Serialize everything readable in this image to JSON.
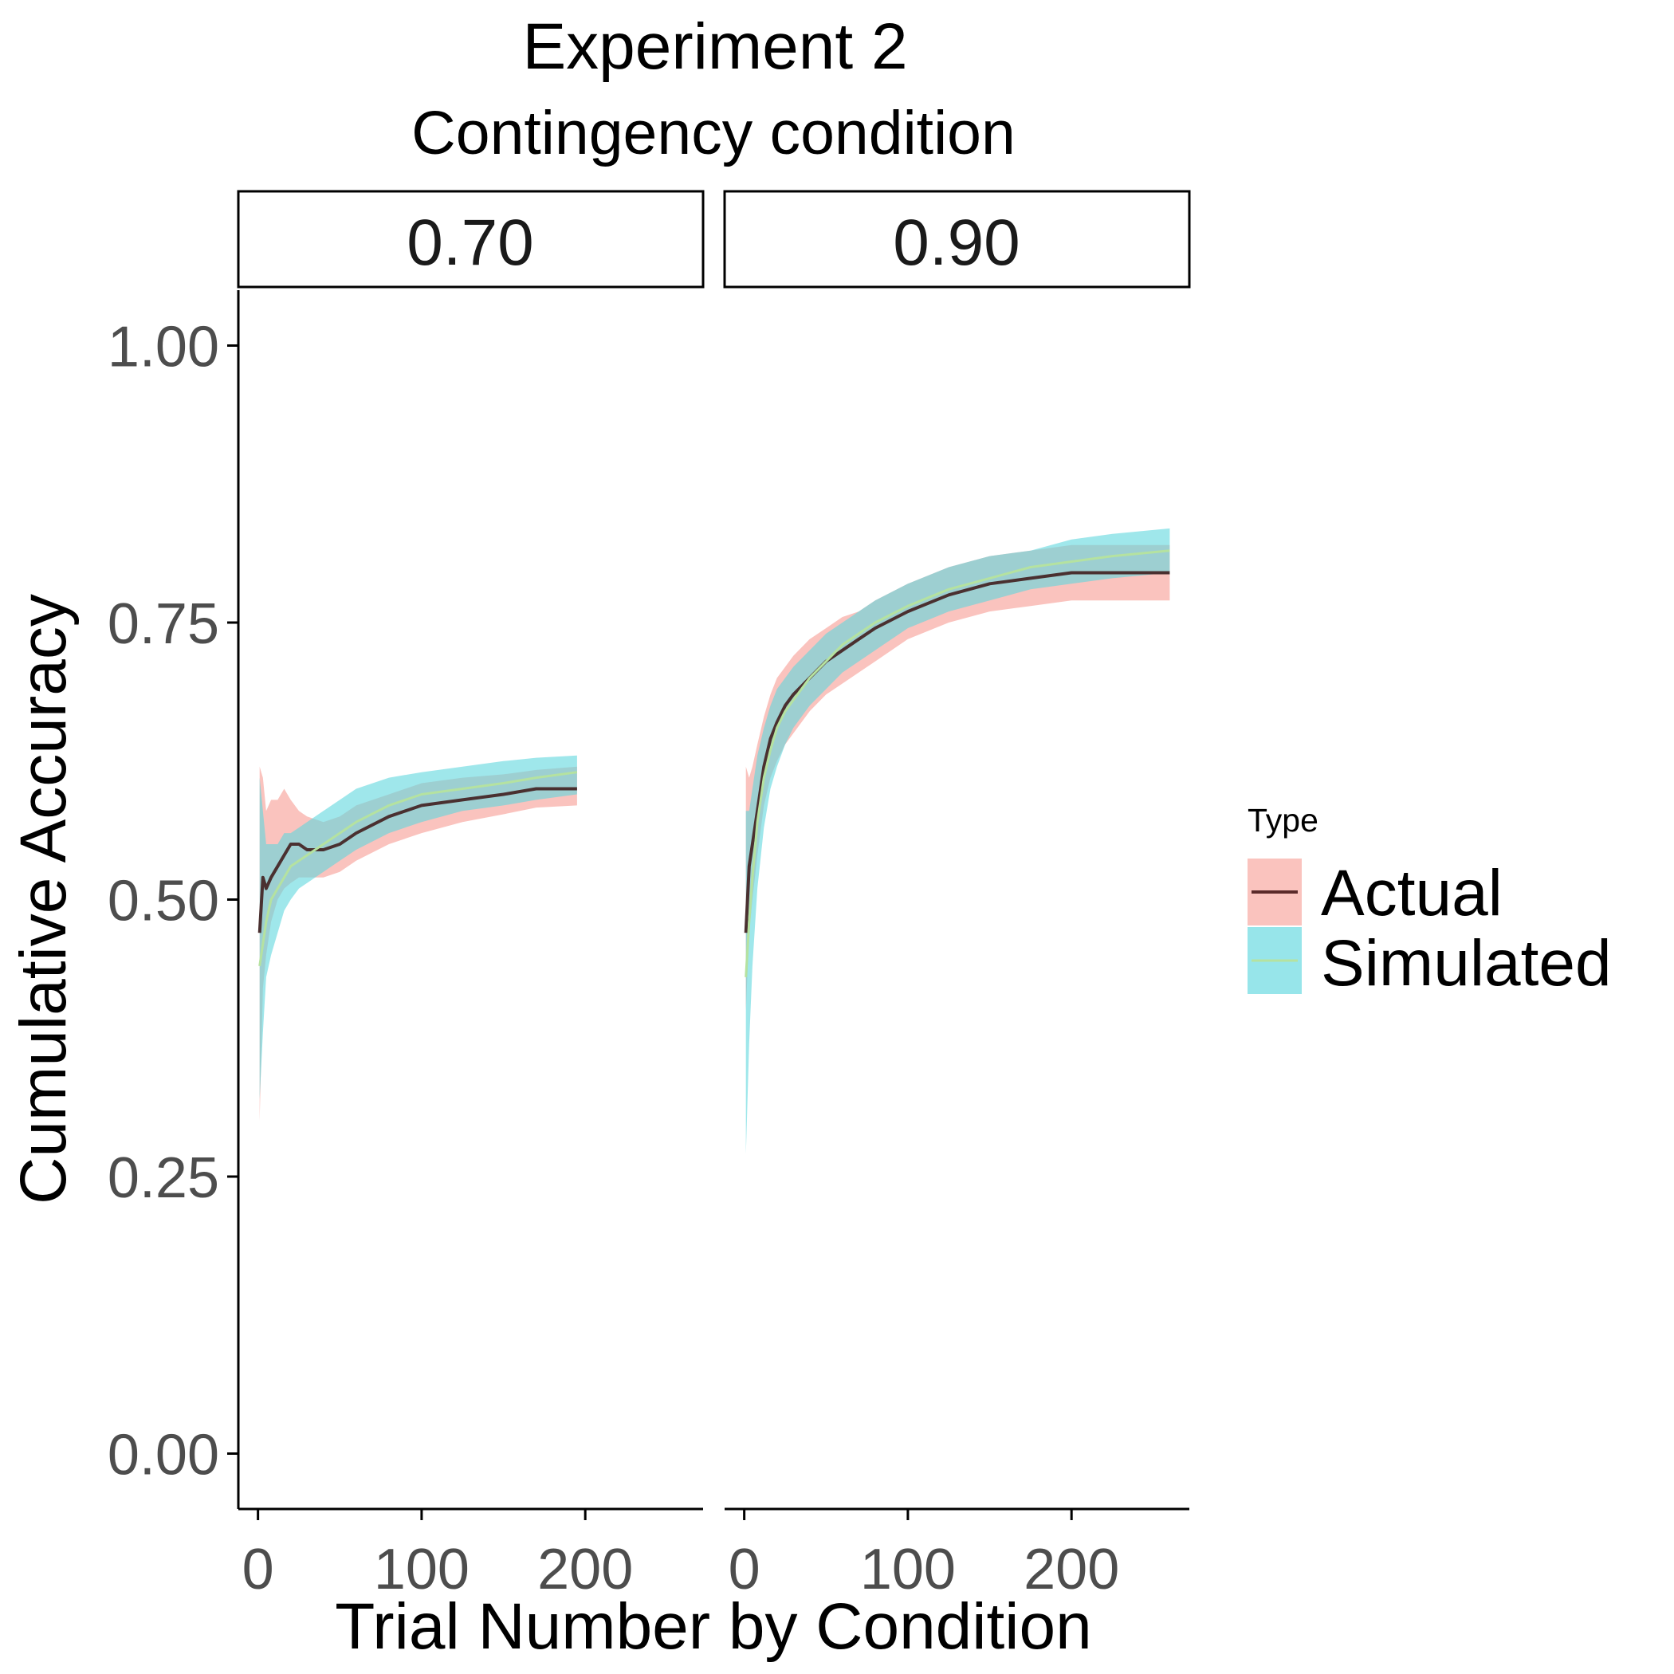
{
  "chart_data": {
    "type": "line",
    "title": "Experiment 2",
    "subtitle": "Contingency condition",
    "xlabel": "Trial Number by Condition",
    "ylabel": "Cumulative Accuracy",
    "xlim": [
      -12,
      272
    ],
    "ylim": [
      -0.05,
      1.05
    ],
    "x_ticks": [
      0,
      100,
      200
    ],
    "x_tick_labels": [
      "0",
      "100",
      "200"
    ],
    "y_ticks": [
      0,
      0.25,
      0.5,
      0.75,
      1.0
    ],
    "y_tick_labels": [
      "0.00",
      "0.25",
      "0.50",
      "0.75",
      "1.00"
    ],
    "grid": false,
    "legend": {
      "title": "Type",
      "position": "right",
      "entries": [
        {
          "label": "Actual",
          "fill": "#f8a9a3",
          "line": "#5a2a2a"
        },
        {
          "label": "Simulated",
          "fill": "#5fd7de",
          "line": "#b5e2a0"
        }
      ]
    },
    "panels": [
      {
        "strip": "0.70",
        "series": [
          {
            "name": "Actual",
            "x": [
              1,
              3,
              5,
              8,
              12,
              16,
              20,
              25,
              30,
              40,
              50,
              60,
              80,
              100,
              125,
              150,
              170,
              195
            ],
            "y": [
              0.47,
              0.52,
              0.51,
              0.52,
              0.53,
              0.54,
              0.55,
              0.55,
              0.545,
              0.545,
              0.55,
              0.56,
              0.575,
              0.585,
              0.59,
              0.595,
              0.6,
              0.6
            ],
            "lower": [
              0.3,
              0.42,
              0.45,
              0.48,
              0.5,
              0.51,
              0.515,
              0.52,
              0.52,
              0.52,
              0.525,
              0.535,
              0.55,
              0.56,
              0.57,
              0.577,
              0.583,
              0.585
            ],
            "upper": [
              0.62,
              0.61,
              0.58,
              0.59,
              0.59,
              0.6,
              0.59,
              0.58,
              0.575,
              0.57,
              0.575,
              0.585,
              0.595,
              0.605,
              0.61,
              0.613,
              0.617,
              0.62
            ]
          },
          {
            "name": "Simulated",
            "x": [
              1,
              3,
              5,
              8,
              12,
              16,
              20,
              25,
              30,
              40,
              50,
              60,
              80,
              100,
              125,
              150,
              170,
              195
            ],
            "y": [
              0.44,
              0.46,
              0.48,
              0.5,
              0.51,
              0.52,
              0.53,
              0.535,
              0.54,
              0.55,
              0.56,
              0.57,
              0.585,
              0.595,
              0.6,
              0.605,
              0.61,
              0.615
            ],
            "lower": [
              0.32,
              0.38,
              0.43,
              0.45,
              0.47,
              0.49,
              0.5,
              0.51,
              0.515,
              0.525,
              0.535,
              0.545,
              0.56,
              0.57,
              0.58,
              0.585,
              0.59,
              0.595
            ],
            "upper": [
              0.61,
              0.58,
              0.55,
              0.55,
              0.55,
              0.56,
              0.56,
              0.565,
              0.57,
              0.58,
              0.59,
              0.6,
              0.61,
              0.615,
              0.62,
              0.625,
              0.628,
              0.63
            ]
          }
        ]
      },
      {
        "strip": "0.90",
        "series": [
          {
            "name": "Actual",
            "x": [
              1,
              3,
              5,
              8,
              12,
              16,
              20,
              25,
              30,
              40,
              50,
              60,
              70,
              80,
              100,
              125,
              150,
              175,
              200,
              225,
              260
            ],
            "y": [
              0.47,
              0.53,
              0.55,
              0.58,
              0.62,
              0.645,
              0.66,
              0.675,
              0.685,
              0.7,
              0.715,
              0.725,
              0.735,
              0.745,
              0.76,
              0.775,
              0.785,
              0.79,
              0.795,
              0.795,
              0.795
            ],
            "lower": [
              0.4,
              0.47,
              0.5,
              0.54,
              0.585,
              0.61,
              0.625,
              0.64,
              0.65,
              0.67,
              0.685,
              0.695,
              0.705,
              0.715,
              0.735,
              0.75,
              0.76,
              0.765,
              0.77,
              0.77,
              0.77
            ],
            "upper": [
              0.62,
              0.61,
              0.62,
              0.64,
              0.665,
              0.685,
              0.7,
              0.71,
              0.72,
              0.735,
              0.745,
              0.755,
              0.76,
              0.77,
              0.785,
              0.8,
              0.81,
              0.815,
              0.82,
              0.82,
              0.82
            ]
          },
          {
            "name": "Simulated",
            "x": [
              1,
              3,
              5,
              8,
              12,
              16,
              20,
              25,
              30,
              40,
              50,
              60,
              70,
              80,
              100,
              125,
              150,
              175,
              200,
              225,
              260
            ],
            "y": [
              0.43,
              0.48,
              0.52,
              0.57,
              0.61,
              0.635,
              0.655,
              0.67,
              0.68,
              0.7,
              0.715,
              0.73,
              0.74,
              0.75,
              0.765,
              0.78,
              0.79,
              0.8,
              0.805,
              0.81,
              0.815
            ],
            "lower": [
              0.27,
              0.37,
              0.44,
              0.51,
              0.565,
              0.6,
              0.62,
              0.64,
              0.655,
              0.675,
              0.69,
              0.705,
              0.715,
              0.725,
              0.745,
              0.76,
              0.77,
              0.78,
              0.785,
              0.79,
              0.795
            ],
            "upper": [
              0.58,
              0.58,
              0.6,
              0.63,
              0.655,
              0.675,
              0.69,
              0.7,
              0.71,
              0.725,
              0.74,
              0.75,
              0.76,
              0.77,
              0.785,
              0.8,
              0.81,
              0.815,
              0.825,
              0.83,
              0.835
            ]
          }
        ]
      }
    ]
  }
}
